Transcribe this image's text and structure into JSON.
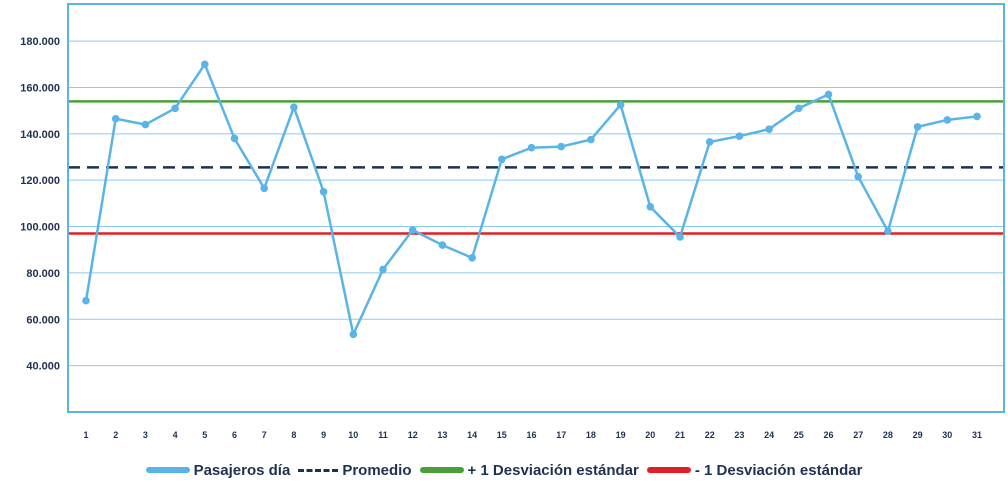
{
  "chart_data": {
    "type": "line",
    "x": [
      "1",
      "2",
      "3",
      "4",
      "5",
      "6",
      "7",
      "8",
      "9",
      "10",
      "11",
      "12",
      "13",
      "14",
      "15",
      "16",
      "17",
      "18",
      "19",
      "20",
      "21",
      "22",
      "23",
      "24",
      "25",
      "26",
      "27",
      "28",
      "29",
      "30",
      "31"
    ],
    "series": [
      {
        "name": "Pasajeros día",
        "color": "#5ab4e5",
        "values": [
          68000,
          146500,
          144000,
          151000,
          170000,
          138000,
          116500,
          151500,
          115000,
          53500,
          81500,
          98500,
          92000,
          86500,
          129000,
          134000,
          134500,
          137500,
          152500,
          108500,
          95500,
          136500,
          139000,
          142000,
          151000,
          157000,
          121500,
          98000,
          143000,
          146000,
          147500
        ]
      }
    ],
    "reference_lines": [
      {
        "name": "Promedio",
        "value": 125500,
        "color": "#1f3150",
        "style": "dashed"
      },
      {
        "name": "+ 1 Desviación estándar",
        "value": 154000,
        "color": "#4aa036",
        "style": "solid"
      },
      {
        "name": "- 1 Desviación estándar",
        "value": 97000,
        "color": "#e31e24",
        "style": "solid"
      }
    ],
    "y_ticks": [
      "40.000",
      "60.000",
      "80.000",
      "100.000",
      "120.000",
      "140.000",
      "160.000",
      "180.000"
    ],
    "y_tick_values": [
      40000,
      60000,
      80000,
      100000,
      120000,
      140000,
      160000,
      180000
    ],
    "ylim": [
      20000,
      196000
    ],
    "grid": true,
    "legend_position": "bottom"
  },
  "legend": {
    "series_label": "Pasajeros día",
    "mean_label": "Promedio",
    "plus_sd_label": "+ 1 Desviación estándar",
    "minus_sd_label": "- 1 Desviación estándar"
  }
}
